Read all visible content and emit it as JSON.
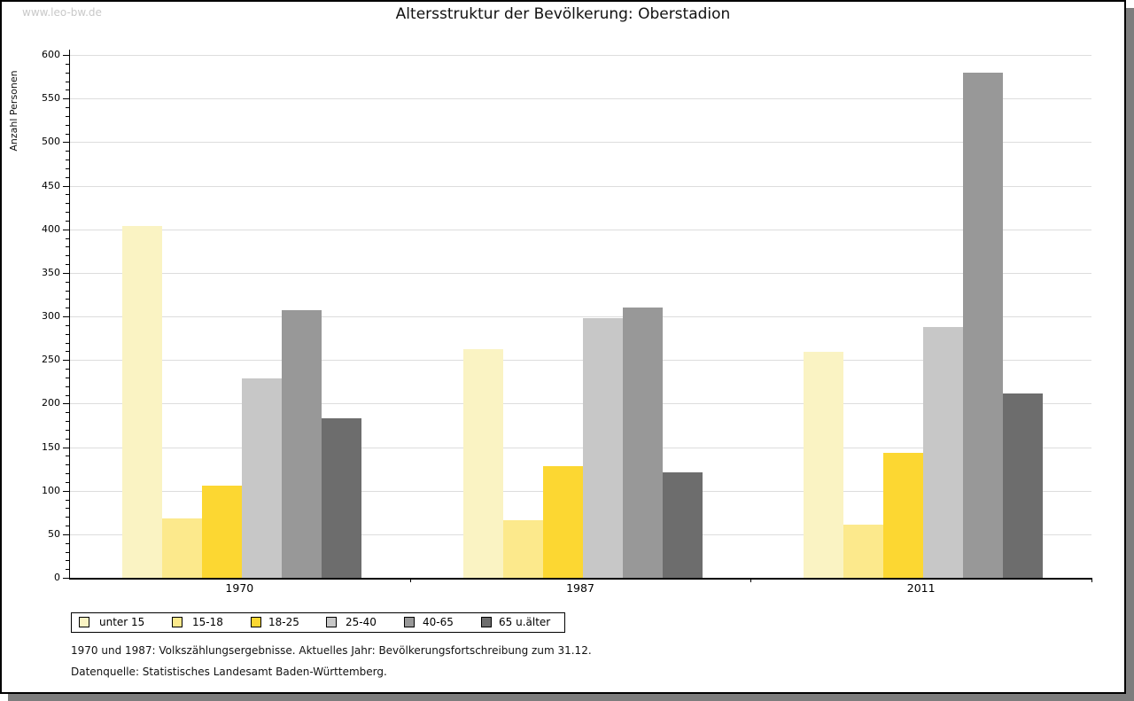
{
  "watermark": "www.leo-bw.de",
  "title": "Altersstruktur der Bevölkerung: Oberstadion",
  "chart_data": {
    "type": "bar",
    "title": "Altersstruktur der Bevölkerung: Oberstadion",
    "xlabel": "",
    "ylabel": "Anzahl Personen",
    "ylim": [
      0,
      600
    ],
    "ytick_step": 50,
    "ytick_minor_step": 10,
    "grid": true,
    "legend_position": "bottom",
    "categories": [
      "1970",
      "1987",
      "2011"
    ],
    "series": [
      {
        "name": "unter 15",
        "color": "#faf3c3",
        "values": [
          404,
          262,
          259
        ]
      },
      {
        "name": "15-18",
        "color": "#fce98c",
        "values": [
          68,
          66,
          61
        ]
      },
      {
        "name": "18-25",
        "color": "#fcd732",
        "values": [
          106,
          128,
          143
        ]
      },
      {
        "name": "25-40",
        "color": "#c7c7c7",
        "values": [
          229,
          298,
          288
        ]
      },
      {
        "name": "40-65",
        "color": "#989898",
        "values": [
          307,
          310,
          580
        ]
      },
      {
        "name": "65 u.älter",
        "color": "#6d6d6d",
        "values": [
          183,
          121,
          212
        ]
      }
    ]
  },
  "footnotes": {
    "line1": "1970 und 1987: Volkszählungsergebnisse. Aktuelles Jahr: Bevölkerungsfortschreibung zum 31.12.",
    "line2": "Datenquelle: Statistisches Landesamt Baden-Württemberg."
  },
  "colors": {
    "gridline": "#dddddd",
    "axis": "#000000",
    "shadow": "#7d7d7d",
    "watermark": "#c9c9c9"
  }
}
